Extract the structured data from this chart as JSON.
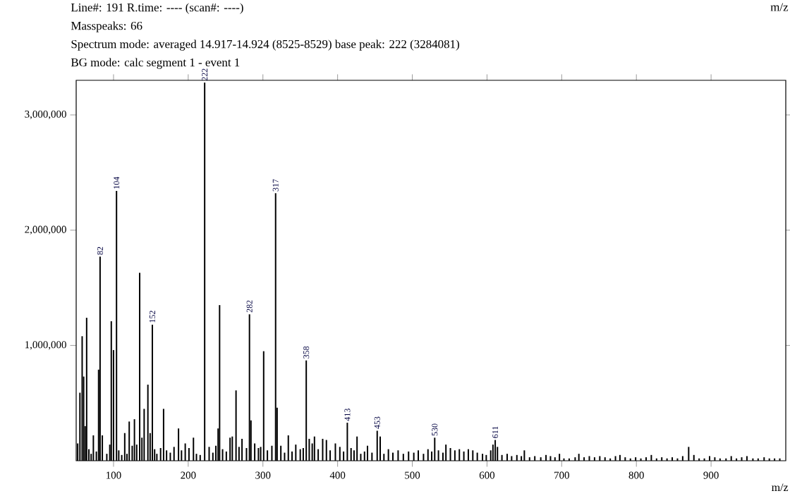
{
  "chart_data": {
    "type": "bar",
    "title": "Line#: 191 R.time: ---- (scan#: ----)",
    "annotations": [
      "Masspeaks: 66",
      "Spectrum mode: averaged 14.917-14.924 (8525-8529) base peak: 222 (3284081)",
      "BG mode: calc segment 1 - event 1",
      "m/z",
      {
        "text": "82",
        "x": 82,
        "y": 1770000
      },
      {
        "text": "104",
        "x": 104,
        "y": 2340000
      },
      {
        "text": "152",
        "x": 152,
        "y": 1180000
      },
      {
        "text": "222",
        "x": 222,
        "y": 3280000
      },
      {
        "text": "282",
        "x": 282,
        "y": 1270000
      },
      {
        "text": "317",
        "x": 317,
        "y": 2320000
      },
      {
        "text": "358",
        "x": 358,
        "y": 870000
      },
      {
        "text": "413",
        "x": 413,
        "y": 330000
      },
      {
        "text": "453",
        "x": 453,
        "y": 260000
      },
      {
        "text": "530",
        "x": 530,
        "y": 200000
      },
      {
        "text": "611",
        "x": 611,
        "y": 180000
      }
    ],
    "xlabel": "m/z",
    "color": "#000000",
    "x": [
      52,
      55,
      58,
      60,
      62,
      64,
      67,
      70,
      73,
      77,
      80,
      82,
      85,
      91,
      95,
      97,
      100,
      104,
      107,
      111,
      115,
      118,
      121,
      125,
      128,
      131,
      135,
      138,
      141,
      146,
      149,
      152,
      155,
      158,
      163,
      167,
      171,
      176,
      181,
      187,
      191,
      196,
      201,
      207,
      211,
      216,
      222,
      228,
      233,
      237,
      240,
      242,
      246,
      251,
      256,
      259,
      264,
      268,
      272,
      278,
      282,
      284,
      289,
      294,
      297,
      301,
      306,
      312,
      317,
      319,
      324,
      329,
      334,
      339,
      344,
      350,
      354,
      358,
      362,
      366,
      369,
      374,
      380,
      385,
      390,
      397,
      403,
      408,
      413,
      418,
      422,
      426,
      431,
      436,
      440,
      446,
      453,
      457,
      462,
      468,
      474,
      481,
      488,
      495,
      502,
      508,
      515,
      521,
      526,
      530,
      535,
      541,
      545,
      551,
      557,
      563,
      569,
      575,
      581,
      587,
      594,
      599,
      605,
      608,
      611,
      614,
      620,
      627,
      633,
      640,
      646,
      650,
      657,
      664,
      672,
      679,
      685,
      691,
      697,
      703,
      710,
      718,
      723,
      730,
      737,
      744,
      751,
      758,
      765,
      772,
      778,
      785,
      792,
      799,
      806,
      813,
      820,
      827,
      834,
      841,
      848,
      855,
      862,
      870,
      877,
      884,
      891,
      898,
      905,
      912,
      920,
      927,
      934,
      941,
      948,
      956,
      963,
      971,
      978,
      985,
      992
    ],
    "values": [
      150000,
      590000,
      1080000,
      730000,
      300000,
      1240000,
      100000,
      60000,
      220000,
      80000,
      790000,
      1770000,
      220000,
      60000,
      140000,
      1210000,
      960000,
      2340000,
      90000,
      50000,
      240000,
      60000,
      340000,
      130000,
      360000,
      140000,
      1630000,
      200000,
      450000,
      660000,
      240000,
      1180000,
      100000,
      60000,
      110000,
      450000,
      90000,
      70000,
      120000,
      280000,
      90000,
      150000,
      110000,
      200000,
      60000,
      50000,
      3280000,
      120000,
      70000,
      130000,
      280000,
      1350000,
      100000,
      80000,
      200000,
      210000,
      610000,
      120000,
      190000,
      110000,
      1270000,
      350000,
      150000,
      110000,
      120000,
      950000,
      90000,
      130000,
      2320000,
      460000,
      130000,
      70000,
      220000,
      80000,
      140000,
      100000,
      110000,
      870000,
      190000,
      150000,
      210000,
      100000,
      190000,
      180000,
      90000,
      150000,
      120000,
      80000,
      330000,
      110000,
      90000,
      210000,
      60000,
      80000,
      130000,
      70000,
      260000,
      210000,
      60000,
      100000,
      70000,
      90000,
      60000,
      80000,
      70000,
      90000,
      60000,
      100000,
      80000,
      200000,
      90000,
      70000,
      140000,
      110000,
      90000,
      100000,
      80000,
      100000,
      90000,
      70000,
      60000,
      50000,
      90000,
      140000,
      180000,
      120000,
      50000,
      60000,
      40000,
      50000,
      40000,
      90000,
      30000,
      40000,
      30000,
      50000,
      40000,
      30000,
      60000,
      20000,
      20000,
      30000,
      60000,
      30000,
      40000,
      30000,
      40000,
      30000,
      20000,
      40000,
      50000,
      30000,
      20000,
      30000,
      20000,
      30000,
      50000,
      20000,
      30000,
      20000,
      30000,
      20000,
      40000,
      120000,
      50000,
      20000,
      20000,
      40000,
      30000,
      20000,
      20000,
      40000,
      20000,
      30000,
      40000,
      20000,
      20000,
      30000,
      20000,
      20000,
      20000
    ],
    "xlim": [
      50,
      1000
    ],
    "ylim": [
      0,
      3300000
    ],
    "xticks": [
      100,
      200,
      300,
      400,
      500,
      600,
      700,
      800,
      900
    ],
    "yticks": [
      {
        "value": 1000000,
        "label": "1,000,000"
      },
      {
        "value": 2000000,
        "label": "2,000,000"
      },
      {
        "value": 3000000,
        "label": "3,000,000"
      }
    ],
    "grid": false
  }
}
